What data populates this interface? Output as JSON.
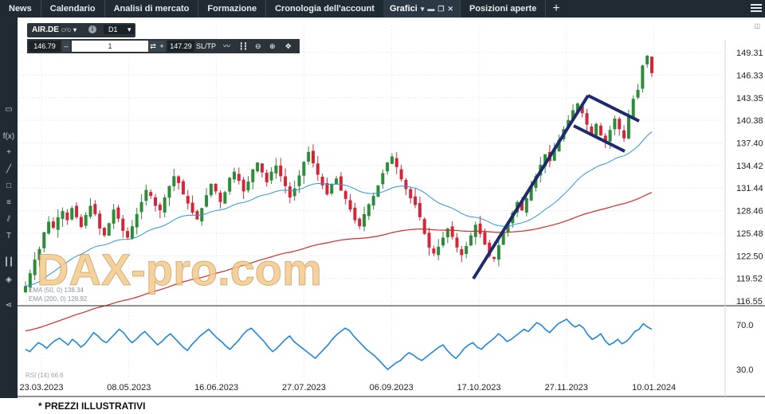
{
  "topnav": {
    "tabs": [
      "News",
      "Calendario",
      "Analisi di mercato",
      "Formazione",
      "Cronologia dell'account"
    ],
    "active_tab": "Grafici",
    "tab_after": "Posizioni aperte",
    "plus": "+"
  },
  "instrument": {
    "symbol": "AIR.DE",
    "type": "CFD",
    "timeframe": "D1",
    "bid": "146.79",
    "quantity": "1",
    "ask": "147.29",
    "sltp": "SL/TP"
  },
  "watermark": "DAX-pro.com",
  "footnote": "* PREZZI ILLUSTRATIVI",
  "colors": {
    "bull": "#2e8b3a",
    "bear": "#d3263a",
    "ema50": "#2d97d8",
    "ema200": "#d32a2a",
    "rsi": "#1f86e0",
    "trendline": "#1f2a6e",
    "toolbar_bg": "#1f2a33"
  },
  "chart_data": [
    {
      "type": "candlestick",
      "dates": [
        "23.03.2023",
        "08.05.2023",
        "16.06.2023",
        "27.07.2023",
        "06.09.2023",
        "17.10.2023",
        "27.11.2023",
        "10.01.2024"
      ],
      "yticks": [
        "149.31",
        "146.33",
        "143.35",
        "140.38",
        "137.40",
        "134.42",
        "131.44",
        "128.46",
        "125.48",
        "122.50",
        "119.52",
        "116.55"
      ],
      "ylim": [
        116.55,
        149.31
      ],
      "close_series": [
        118.5,
        120.2,
        122.0,
        123.4,
        125.6,
        127.0,
        126.2,
        127.6,
        128.4,
        127.2,
        128.8,
        127.6,
        126.3,
        127.9,
        129.1,
        128.0,
        126.1,
        125.2,
        126.8,
        128.6,
        127.4,
        125.8,
        124.9,
        126.4,
        128.0,
        129.6,
        131.2,
        130.4,
        129.1,
        128.5,
        130.2,
        131.7,
        133.0,
        132.1,
        130.6,
        129.4,
        128.2,
        127.3,
        128.8,
        130.5,
        132.0,
        131.0,
        129.6,
        130.9,
        132.8,
        133.6,
        132.4,
        131.0,
        132.3,
        133.9,
        134.8,
        133.5,
        132.2,
        133.6,
        134.4,
        133.0,
        131.7,
        130.2,
        131.4,
        133.1,
        134.9,
        136.2,
        134.7,
        133.2,
        131.8,
        130.6,
        131.9,
        132.7,
        131.1,
        130.0,
        128.6,
        127.2,
        126.4,
        128.0,
        129.3,
        130.4,
        131.8,
        133.4,
        134.8,
        135.6,
        134.2,
        132.6,
        131.3,
        130.1,
        129.2,
        127.6,
        125.4,
        123.6,
        122.8,
        123.7,
        124.9,
        126.1,
        125.0,
        123.6,
        122.6,
        123.8,
        125.2,
        126.6,
        125.4,
        124.0,
        122.5,
        122.1,
        123.9,
        125.6,
        126.9,
        128.2,
        129.6,
        128.5,
        130.1,
        131.7,
        133.0,
        134.5,
        135.9,
        135.0,
        136.4,
        137.8,
        139.2,
        140.4,
        141.7,
        142.6,
        141.3,
        139.8,
        138.6,
        139.9,
        138.4,
        137.6,
        139.1,
        140.6,
        139.2,
        138.0,
        140.8,
        143.2,
        144.4,
        147.6,
        148.9,
        146.6
      ],
      "series": [
        {
          "name": "EMA (50, 0)",
          "last_value": "138.34"
        },
        {
          "name": "EMA (200, 0)",
          "last_value": "128.92"
        }
      ]
    },
    {
      "type": "line",
      "ylim": [
        20,
        80
      ],
      "yticks": [
        "70.0",
        "30.0"
      ],
      "series": [
        {
          "name": "RSI (14)",
          "last_value": "66.6",
          "values": [
            48,
            46,
            50,
            54,
            52,
            49,
            53,
            56,
            58,
            55,
            52,
            57,
            54,
            50,
            53,
            58,
            63,
            60,
            56,
            54,
            58,
            62,
            66,
            63,
            58,
            54,
            57,
            61,
            64,
            60,
            56,
            52,
            55,
            59,
            62,
            58,
            54,
            50,
            47,
            52,
            56,
            60,
            63,
            66,
            62,
            58,
            55,
            51,
            48,
            52,
            56,
            61,
            65,
            67,
            63,
            59,
            55,
            50,
            46,
            49,
            53,
            57,
            60,
            55,
            52,
            49,
            46,
            43,
            40,
            44,
            48,
            52,
            57,
            61,
            64,
            67,
            65,
            60,
            56,
            52,
            48,
            45,
            42,
            38,
            34,
            30,
            33,
            36,
            38,
            42,
            45,
            43,
            40,
            38,
            41,
            44,
            47,
            50,
            52,
            47,
            43,
            40,
            44,
            49,
            52,
            54,
            50,
            48,
            52,
            55,
            58,
            62,
            59,
            55,
            57,
            60,
            63,
            66,
            64,
            68,
            72,
            70,
            66,
            63,
            67,
            71,
            73,
            75,
            71,
            68,
            70,
            67,
            61,
            57,
            59,
            62,
            56,
            52,
            54,
            57,
            53,
            55,
            59,
            64,
            66,
            71,
            68,
            66
          ]
        }
      ]
    }
  ]
}
